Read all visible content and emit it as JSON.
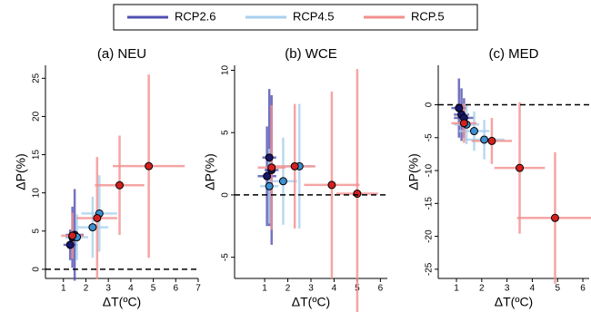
{
  "chart_data": [
    {
      "type": "scatter",
      "title": "(a) NEU",
      "x_label": "ΔT(ºC)",
      "y_label": "ΔP(%)",
      "xlim": [
        0.2,
        7
      ],
      "ylim": [
        -1.2,
        26.7
      ],
      "xticks": [
        1,
        2,
        3,
        4,
        5,
        6,
        7
      ],
      "yticks": [
        0,
        5,
        10,
        15,
        20,
        25
      ],
      "reference_line": 0,
      "series": [
        {
          "name": "RCP2.6",
          "color": "#5050b0",
          "marker_color": "#16166a",
          "x": [
            1.3,
            1.5,
            1.4
          ],
          "values": [
            3.2,
            4.5,
            4.2
          ],
          "xerr": [
            0.3,
            0.4,
            0.3
          ],
          "yerr": [
            2,
            6,
            4
          ]
        },
        {
          "name": "RCP4.5",
          "color": "#a9cfee",
          "marker_color": "#3d8fd0",
          "x": [
            1.6,
            2.3,
            2.6
          ],
          "values": [
            4.2,
            5.5,
            7.3
          ],
          "xerr": [
            0.5,
            0.7,
            0.8
          ],
          "yerr": [
            3,
            4,
            5
          ]
        },
        {
          "name": "RCP.5",
          "color": "#f28f8f",
          "marker_color": "#d42020",
          "x": [
            1.4,
            2.5,
            3.5,
            4.8
          ],
          "values": [
            4.4,
            6.7,
            11,
            13.5
          ],
          "xerr": [
            0.5,
            0.9,
            1.1,
            1.6
          ],
          "yerr": [
            3,
            8,
            6.5,
            12
          ]
        }
      ]
    },
    {
      "type": "scatter",
      "title": "(b) WCE",
      "x_label": "ΔT(ºC)",
      "y_label": "ΔP(%)",
      "xlim": [
        -0.3,
        6.3
      ],
      "ylim": [
        -6.7,
        10.4
      ],
      "xticks": [
        1,
        2,
        3,
        4,
        5,
        6
      ],
      "yticks": [
        -5,
        0,
        5,
        10
      ],
      "reference_line": 0,
      "series": [
        {
          "name": "RCP2.6",
          "color": "#5050b0",
          "marker_color": "#16166a",
          "x": [
            1.2,
            1.1,
            1.3
          ],
          "values": [
            3,
            1.5,
            2
          ],
          "xerr": [
            0.3,
            0.4,
            0.3
          ],
          "yerr": [
            5.5,
            4,
            6
          ]
        },
        {
          "name": "RCP4.5",
          "color": "#a9cfee",
          "marker_color": "#3d8fd0",
          "x": [
            1.2,
            1.8,
            2.5
          ],
          "values": [
            0.7,
            1.1,
            2.3
          ],
          "xerr": [
            0.4,
            0.6,
            0.6
          ],
          "yerr": [
            3,
            3.5,
            5
          ]
        },
        {
          "name": "RCP.5",
          "color": "#f28f8f",
          "marker_color": "#d42020",
          "x": [
            1.3,
            2.3,
            3.9,
            5
          ],
          "values": [
            2.2,
            2.3,
            0.8,
            0.1
          ],
          "xerr": [
            0.6,
            0.9,
            1.2,
            0.9
          ],
          "yerr": [
            5,
            5,
            7.5,
            10
          ]
        }
      ]
    },
    {
      "type": "scatter",
      "title": "(c) MED",
      "x_label": "ΔT(ºC)",
      "y_label": "ΔP(%)",
      "xlim": [
        0.28,
        6.25
      ],
      "ylim": [
        -26.4,
        6
      ],
      "xticks": [
        1,
        2,
        3,
        4,
        5,
        6
      ],
      "yticks": [
        -25,
        -20,
        -15,
        -10,
        -5,
        0
      ],
      "reference_line": 0,
      "series": [
        {
          "name": "RCP2.6",
          "color": "#5050b0",
          "marker_color": "#16166a",
          "x": [
            1.1,
            1.2,
            1.3
          ],
          "values": [
            -0.5,
            -1.5,
            -2
          ],
          "xerr": [
            0.3,
            0.3,
            0.4
          ],
          "yerr": [
            4.5,
            4,
            3
          ]
        },
        {
          "name": "RCP4.5",
          "color": "#a9cfee",
          "marker_color": "#3d8fd0",
          "x": [
            1.4,
            1.7,
            2.1
          ],
          "values": [
            -3,
            -4,
            -5.3
          ],
          "xerr": [
            0.5,
            0.6,
            0.8
          ],
          "yerr": [
            3,
            3,
            3
          ]
        },
        {
          "name": "RCP.5",
          "color": "#f28f8f",
          "marker_color": "#d42020",
          "x": [
            1.3,
            2.4,
            3.5,
            4.9
          ],
          "values": [
            -2.8,
            -5.5,
            -9.6,
            -17.2
          ],
          "xerr": [
            0.5,
            0.8,
            1,
            1.5
          ],
          "yerr": [
            3,
            3.5,
            10,
            10
          ]
        }
      ]
    }
  ]
}
